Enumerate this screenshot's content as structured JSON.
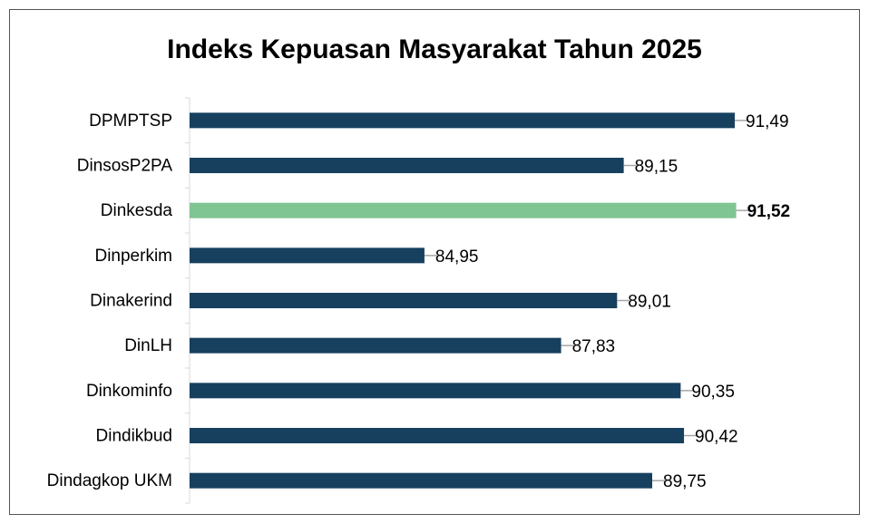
{
  "chart_data": {
    "type": "barh",
    "title": "Indeks Kepuasan Masyarakat Tahun 2025",
    "categories": [
      "DPMPTSP",
      "DinsosP2PA",
      "Dinkesda",
      "Dinperkim",
      "Dinakerind",
      "DinLH",
      "Dinkominfo",
      "Dindikbud",
      "Dindagkop UKM"
    ],
    "values": [
      91.49,
      89.15,
      91.52,
      84.95,
      89.01,
      87.83,
      90.35,
      90.42,
      89.75
    ],
    "value_labels": [
      "91,49",
      "89,15",
      "91,52",
      "84,95",
      "89,01",
      "87,83",
      "90,35",
      "90,42",
      "89,75"
    ],
    "colors": [
      "#17405f",
      "#17405f",
      "#7fc493",
      "#17405f",
      "#17405f",
      "#17405f",
      "#17405f",
      "#17405f",
      "#17405f"
    ],
    "bold_labels": [
      false,
      false,
      true,
      false,
      false,
      false,
      false,
      false,
      false
    ],
    "xlim": [
      80,
      93
    ]
  }
}
